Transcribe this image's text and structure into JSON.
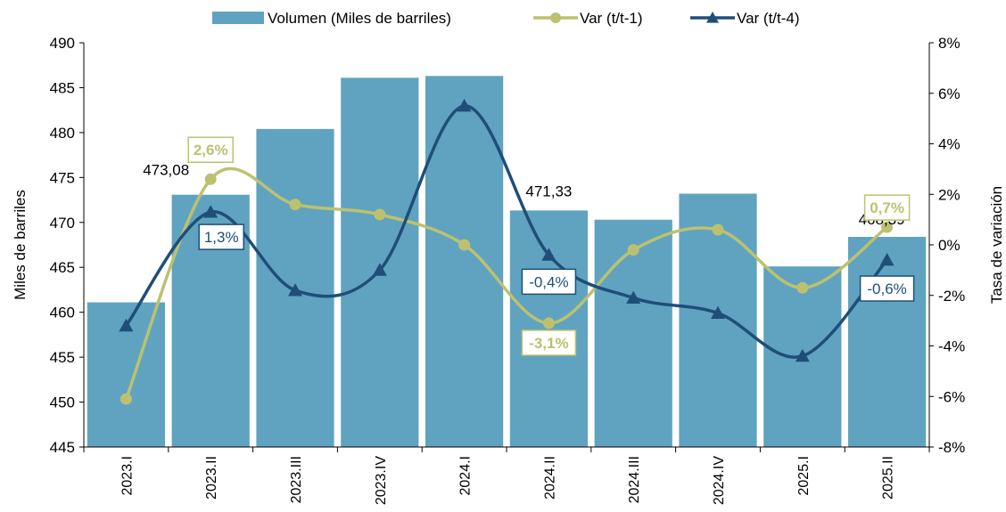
{
  "chart_data": {
    "type": "bar",
    "categories": [
      "2023.I",
      "2023.II",
      "2023.III",
      "2023.IV",
      "2024.I",
      "2024.II",
      "2024.III",
      "2024.IV",
      "2025.I",
      "2025.II"
    ],
    "series": [
      {
        "name": "Volumen (Miles de barriles)",
        "type": "bar",
        "axis": "left",
        "values": [
          461.1,
          473.08,
          480.4,
          486.1,
          486.3,
          471.33,
          470.3,
          473.2,
          465.1,
          468.39
        ]
      },
      {
        "name": "Var (t/t-1)",
        "type": "line",
        "axis": "right",
        "marker": "circle",
        "values": [
          -6.1,
          2.6,
          1.6,
          1.2,
          0.0,
          -3.1,
          -0.2,
          0.6,
          -1.7,
          0.7
        ]
      },
      {
        "name": "Var (t/t-4)",
        "type": "line",
        "axis": "right",
        "marker": "triangle",
        "values": [
          -3.2,
          1.3,
          -1.8,
          -1.0,
          5.5,
          -0.4,
          -2.1,
          -2.7,
          -4.4,
          -0.6
        ]
      }
    ],
    "ylabel": "Miles de barriles",
    "ylim": [
      445,
      490
    ],
    "yticks": [
      "445",
      "450",
      "455",
      "460",
      "465",
      "470",
      "475",
      "480",
      "485",
      "490"
    ],
    "y2label": "Tasa de variación",
    "y2lim": [
      -8,
      8
    ],
    "y2ticks": [
      "-8%",
      "-6%",
      "-4%",
      "-2%",
      "0%",
      "2%",
      "4%",
      "6%",
      "8%"
    ],
    "legend_position": "top",
    "grid": false,
    "data_labels": [
      {
        "series": 0,
        "index": 1,
        "text": "473,08"
      },
      {
        "series": 0,
        "index": 5,
        "text": "471,33"
      },
      {
        "series": 0,
        "index": 9,
        "text": "468,39"
      },
      {
        "series": 1,
        "index": 1,
        "text": "2,6%"
      },
      {
        "series": 1,
        "index": 5,
        "text": "-3,1%"
      },
      {
        "series": 1,
        "index": 9,
        "text": "0,7%"
      },
      {
        "series": 2,
        "index": 1,
        "text": "1,3%"
      },
      {
        "series": 2,
        "index": 5,
        "text": "-0,4%"
      },
      {
        "series": 2,
        "index": 9,
        "text": "-0,6%"
      }
    ],
    "colors": {
      "bar": "#5fa3c0",
      "var_t1": "#bdc16f",
      "var_t4": "#1f4e79"
    }
  }
}
